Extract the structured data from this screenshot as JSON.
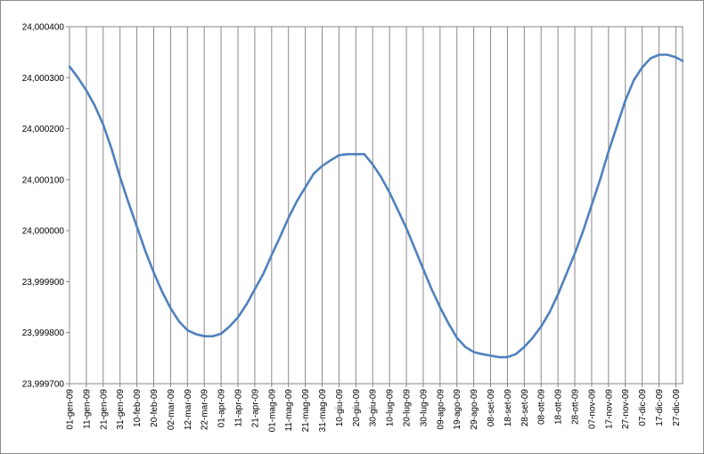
{
  "chart_data": {
    "type": "line",
    "title": "",
    "xlabel": "",
    "ylabel": "",
    "ylim": [
      23.9997,
      24.0004
    ],
    "y_ticks": [
      {
        "value": 24.0004,
        "label": "24,000400"
      },
      {
        "value": 24.0003,
        "label": "24,000300"
      },
      {
        "value": 24.0002,
        "label": "24,000200"
      },
      {
        "value": 24.0001,
        "label": "24,000100"
      },
      {
        "value": 24.0,
        "label": "24,000000"
      },
      {
        "value": 23.9999,
        "label": "23,999900"
      },
      {
        "value": 23.9998,
        "label": "23,999800"
      },
      {
        "value": 23.9997,
        "label": "23,999700"
      }
    ],
    "x_ticks": [
      "01-gen-09",
      "11-gen-09",
      "21-gen-09",
      "31-gen-09",
      "10-feb-09",
      "20-feb-09",
      "02-mar-09",
      "12-mar-09",
      "22-mar-09",
      "01-apr-09",
      "11-apr-09",
      "21-apr-09",
      "01-mag-09",
      "11-mag-09",
      "21-mag-09",
      "31-mag-09",
      "10-giu-09",
      "20-giu-09",
      "30-giu-09",
      "10-lug-09",
      "20-lug-09",
      "30-lug-09",
      "09-ago-09",
      "19-ago-09",
      "29-ago-09",
      "08-set-09",
      "18-set-09",
      "28-set-09",
      "08-ott-09",
      "18-ott-09",
      "28-ott-09",
      "07-nov-09",
      "17-nov-09",
      "27-nov-09",
      "07-dic-09",
      "17-dic-09",
      "27-dic-09"
    ],
    "x_range": [
      "01-gen-09",
      "31-dic-09"
    ],
    "grid": {
      "vertical": true,
      "horizontal": false
    },
    "legend": "none",
    "series": [
      {
        "color": "#4f81bd",
        "x": [
          "01-gen-09",
          "06-gen-09",
          "11-gen-09",
          "16-gen-09",
          "21-gen-09",
          "26-gen-09",
          "31-gen-09",
          "05-feb-09",
          "10-feb-09",
          "15-feb-09",
          "20-feb-09",
          "25-feb-09",
          "02-mar-09",
          "07-mar-09",
          "12-mar-09",
          "17-mar-09",
          "22-mar-09",
          "27-mar-09",
          "01-apr-09",
          "06-apr-09",
          "11-apr-09",
          "16-apr-09",
          "21-apr-09",
          "26-apr-09",
          "01-mag-09",
          "06-mag-09",
          "11-mag-09",
          "16-mag-09",
          "21-mag-09",
          "26-mag-09",
          "31-mag-09",
          "05-giu-09",
          "10-giu-09",
          "15-giu-09",
          "20-giu-09",
          "25-giu-09",
          "30-giu-09",
          "05-lug-09",
          "10-lug-09",
          "15-lug-09",
          "20-lug-09",
          "25-lug-09",
          "30-lug-09",
          "04-ago-09",
          "09-ago-09",
          "14-ago-09",
          "19-ago-09",
          "24-ago-09",
          "29-ago-09",
          "03-set-09",
          "08-set-09",
          "13-set-09",
          "18-set-09",
          "23-set-09",
          "28-set-09",
          "03-ott-09",
          "08-ott-09",
          "13-ott-09",
          "18-ott-09",
          "23-ott-09",
          "28-ott-09",
          "02-nov-09",
          "07-nov-09",
          "12-nov-09",
          "17-nov-09",
          "22-nov-09",
          "27-nov-09",
          "02-dic-09",
          "07-dic-09",
          "12-dic-09",
          "17-dic-09",
          "22-dic-09",
          "27-dic-09",
          "31-dic-09"
        ],
        "values": [
          24.000322,
          24.0003,
          24.000275,
          24.000245,
          24.000208,
          24.00016,
          24.000105,
          24.000055,
          24.000008,
          23.99996,
          23.999918,
          23.99988,
          23.999848,
          23.999822,
          23.999805,
          23.999797,
          23.999793,
          23.999793,
          23.999798,
          23.999812,
          23.99983,
          23.999855,
          23.999885,
          23.999915,
          23.999952,
          23.999988,
          24.000025,
          24.000058,
          24.000085,
          24.000112,
          24.000127,
          24.000138,
          24.000148,
          24.00015,
          24.00015,
          24.00015,
          24.00013,
          24.000105,
          24.000075,
          24.00004,
          24.000005,
          23.999965,
          23.999925,
          23.999885,
          23.99985,
          23.999818,
          23.99979,
          23.999772,
          23.999762,
          23.999758,
          23.999755,
          23.999752,
          23.999752,
          23.999758,
          23.999772,
          23.99979,
          23.999812,
          23.99984,
          23.999875,
          23.999915,
          23.999955,
          24.0,
          24.00005,
          24.0001,
          24.000155,
          24.000205,
          24.000255,
          24.000295,
          24.00032,
          24.000338,
          24.000345,
          24.000345,
          24.00034,
          24.000333
        ]
      }
    ]
  }
}
